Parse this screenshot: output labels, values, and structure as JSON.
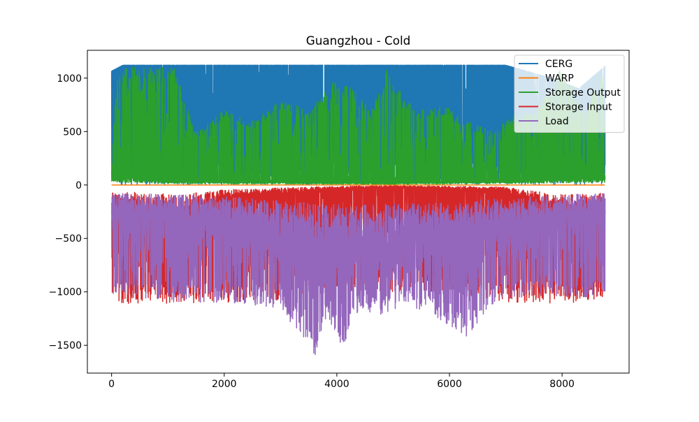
{
  "chart_data": {
    "type": "line",
    "title": "Guangzhou - Cold",
    "xlabel": "",
    "ylabel": "",
    "xlim": [
      -430,
      9190
    ],
    "ylim": [
      -1760,
      1260
    ],
    "xticks": [
      0,
      2000,
      4000,
      6000,
      8000
    ],
    "yticks": [
      -1500,
      -1000,
      -500,
      0,
      500,
      1000
    ],
    "ytick_labels": [
      "−1500",
      "−1000",
      "−500",
      "0",
      "500",
      "1000"
    ],
    "x_range": [
      0,
      8760
    ],
    "grid": false,
    "legend_position": "top-right",
    "series": [
      {
        "name": "CERG",
        "color": "#1f77b4",
        "max_value": 1120,
        "envelope_upper": [
          [
            0,
            1065
          ],
          [
            200,
            1120
          ],
          [
            1000,
            1120
          ],
          [
            3000,
            1120
          ],
          [
            5000,
            1120
          ],
          [
            7000,
            1120
          ],
          [
            7800,
            1000
          ],
          [
            8300,
            900
          ],
          [
            8760,
            1110
          ]
        ],
        "description_baseline": 0
      },
      {
        "name": "WARP",
        "color": "#ff7f0e",
        "constant_value": 0
      },
      {
        "name": "Storage Output",
        "color": "#2ca02c",
        "envelope_upper": [
          [
            0,
            150
          ],
          [
            100,
            1110
          ],
          [
            300,
            1110
          ],
          [
            1100,
            1110
          ],
          [
            1500,
            500
          ],
          [
            2000,
            700
          ],
          [
            2500,
            600
          ],
          [
            3000,
            800
          ],
          [
            3500,
            700
          ],
          [
            4000,
            1000
          ],
          [
            4300,
            900
          ],
          [
            4600,
            700
          ],
          [
            4900,
            1100
          ],
          [
            5200,
            800
          ],
          [
            5600,
            700
          ],
          [
            5900,
            750
          ],
          [
            6300,
            600
          ],
          [
            6800,
            500
          ],
          [
            7100,
            650
          ],
          [
            7500,
            700
          ],
          [
            8000,
            1110
          ],
          [
            8400,
            700
          ],
          [
            8760,
            1100
          ]
        ],
        "baseline_band": [
          [
            0,
            90
          ],
          [
            1000,
            40
          ],
          [
            3000,
            30
          ],
          [
            5000,
            20
          ],
          [
            7000,
            40
          ],
          [
            8760,
            80
          ]
        ]
      },
      {
        "name": "Storage Input",
        "color": "#d62728",
        "envelope_lower": [
          [
            0,
            -1065
          ],
          [
            200,
            -1110
          ],
          [
            1000,
            -1110
          ],
          [
            2000,
            -1100
          ],
          [
            3000,
            -1080
          ],
          [
            3500,
            -1000
          ],
          [
            4000,
            -1000
          ],
          [
            5000,
            -1000
          ],
          [
            6000,
            -1000
          ],
          [
            7000,
            -1100
          ],
          [
            8000,
            -1110
          ],
          [
            8760,
            -1090
          ]
        ],
        "baseline_band": [
          [
            0,
            -200
          ],
          [
            1200,
            -300
          ],
          [
            2000,
            -150
          ],
          [
            3200,
            -80
          ],
          [
            4000,
            -40
          ],
          [
            5000,
            -20
          ],
          [
            6000,
            -40
          ],
          [
            7000,
            -60
          ],
          [
            7500,
            -200
          ],
          [
            8200,
            -300
          ],
          [
            8760,
            -250
          ]
        ]
      },
      {
        "name": "Load",
        "color": "#9467bd",
        "envelope_lower": [
          [
            0,
            -1050
          ],
          [
            1200,
            -1100
          ],
          [
            2000,
            -1100
          ],
          [
            3000,
            -1150
          ],
          [
            3600,
            -1620
          ],
          [
            3800,
            -1250
          ],
          [
            4100,
            -1530
          ],
          [
            4400,
            -1150
          ],
          [
            4800,
            -1250
          ],
          [
            5200,
            -1100
          ],
          [
            5800,
            -1250
          ],
          [
            6300,
            -1420
          ],
          [
            6800,
            -1100
          ],
          [
            7200,
            -1050
          ],
          [
            8000,
            -1050
          ],
          [
            8760,
            -1050
          ]
        ],
        "baseline_band": [
          [
            0,
            -250
          ],
          [
            1000,
            -300
          ],
          [
            2000,
            -350
          ],
          [
            3000,
            -500
          ],
          [
            4000,
            -600
          ],
          [
            5000,
            -600
          ],
          [
            6000,
            -550
          ],
          [
            7000,
            -400
          ],
          [
            8000,
            -300
          ],
          [
            8760,
            -250
          ]
        ]
      }
    ]
  }
}
